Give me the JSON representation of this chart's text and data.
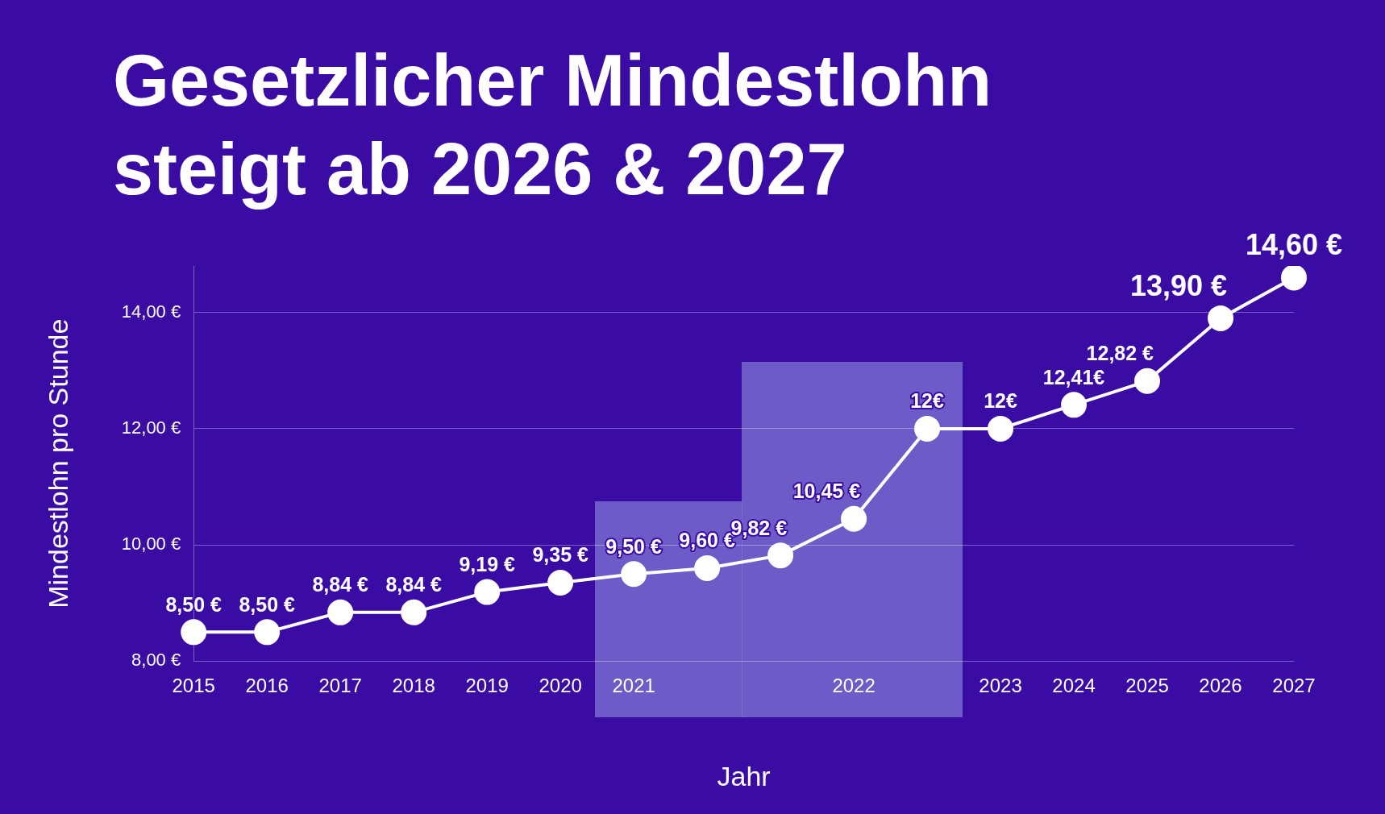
{
  "chart_data": {
    "type": "line",
    "title": "Gesetzlicher Mindestlohn steigt ab 2026 & 2027",
    "xlabel": "Jahr",
    "ylabel": "Mindestlohn pro Stunde",
    "categories": [
      "2015",
      "2016",
      "2017",
      "2018",
      "2019",
      "2020",
      "2021",
      null,
      null,
      "2022",
      null,
      "2023",
      "2024",
      "2025",
      "2026",
      "2027"
    ],
    "series": [
      {
        "color": "#ffffff",
        "values": [
          8.5,
          8.5,
          8.84,
          8.84,
          9.19,
          9.35,
          9.5,
          9.6,
          9.82,
          10.45,
          12,
          12,
          12.41,
          12.82,
          13.9,
          14.6
        ],
        "value_labels": [
          "8,50 €",
          "8,50 €",
          "8,84 €",
          "8,84 €",
          "9,19 €",
          "9,35 €",
          "9,50 €",
          "9,60 €",
          "9,82 €",
          "10,45 €",
          "12€",
          "12€",
          "12,41€",
          "12,82 €",
          "13,90 €",
          "14,60 €"
        ]
      }
    ],
    "ylim": [
      8,
      14.8
    ],
    "yticks": [
      {
        "value": 8,
        "label": "8,00 €"
      },
      {
        "value": 10,
        "label": "10,00 €"
      },
      {
        "value": 12,
        "label": "12,00 €"
      },
      {
        "value": 14,
        "label": "14,00 €"
      }
    ],
    "grid": "y",
    "marker": "circle",
    "line_style": "solid",
    "legend": false
  }
}
